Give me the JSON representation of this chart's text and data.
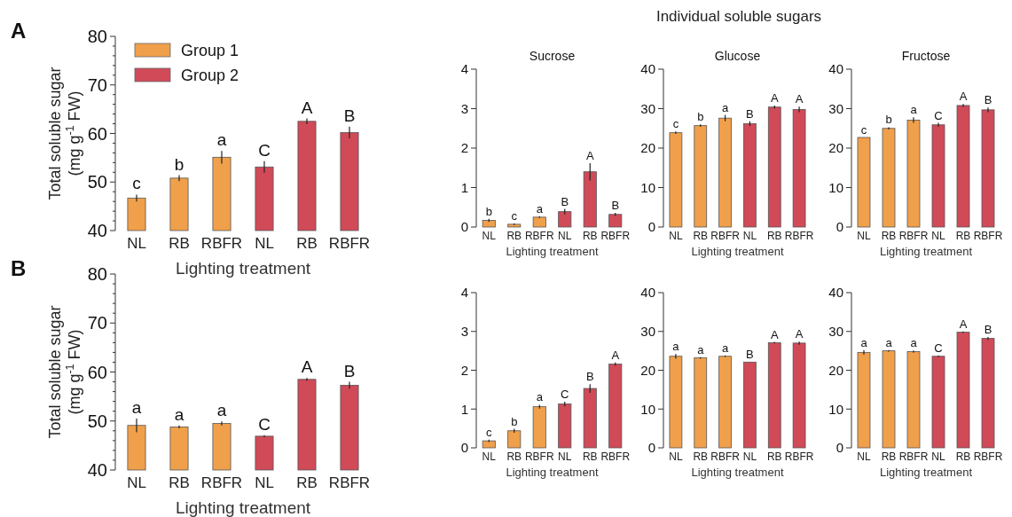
{
  "chart_data": [
    {
      "type": "bar",
      "ylabel": "Total soluble sugar\n(mg g$^{-1}$ FW)",
      "xlabel": "Lighting treatment",
      "categories": [
        "NL",
        "RB",
        "RBFR",
        "NL",
        "RB",
        "RBFR"
      ],
      "ylim": [
        40,
        80
      ],
      "yticks": [
        40,
        {
          "value": 42,
          "label": null
        },
        {
          "value": 44,
          "label": null
        },
        {
          "value": 46,
          "label": null
        },
        {
          "value": 48,
          "label": null
        },
        50,
        {
          "value": 52,
          "label": null
        },
        {
          "value": 54,
          "label": null
        },
        {
          "value": 56,
          "label": null
        },
        {
          "value": 58,
          "label": null
        },
        60,
        {
          "value": 62,
          "label": null
        },
        {
          "value": 64,
          "label": null
        },
        {
          "value": 66,
          "label": null
        },
        {
          "value": 68,
          "label": null
        },
        70,
        {
          "value": 72,
          "label": null
        },
        {
          "value": 74,
          "label": null
        },
        {
          "value": 76,
          "label": null
        },
        {
          "value": 78,
          "label": null
        },
        80
      ],
      "legend": "top left",
      "annotations": [
        "A"
      ],
      "series": [
        {
          "name": "Group 1",
          "color": "#f0a04b",
          "values": [
            46.7,
            50.8,
            55.1,
            null,
            null,
            null
          ],
          "errors": [
            0.7,
            0.6,
            1.3,
            null,
            null,
            null
          ],
          "value_labels": [
            "c",
            "b",
            "a",
            null,
            null,
            null
          ]
        },
        {
          "name": "Group 2",
          "color": "#d04a58",
          "values": [
            null,
            null,
            null,
            53.1,
            62.5,
            60.2
          ],
          "errors": [
            null,
            null,
            null,
            1.2,
            0.6,
            1.2
          ],
          "value_labels": [
            null,
            null,
            null,
            "C",
            "A",
            "B"
          ]
        }
      ]
    },
    {
      "type": "other",
      "title": "Individual soluble sugars"
    },
    {
      "type": "bar",
      "title": "Sucrose",
      "xlabel": "Lighting treatment",
      "categories": [
        "NL",
        "RB",
        "RBFR",
        "NL",
        "RB",
        "RBFR"
      ],
      "ylim": [
        0,
        4
      ],
      "yticks": [
        0,
        1,
        2,
        3,
        4
      ],
      "series": [
        {
          "color": "#f0a04b",
          "values": [
            0.17,
            0.07,
            0.25,
            null,
            null,
            null
          ],
          "errors": [
            0.04,
            0.02,
            0.02,
            null,
            null,
            null
          ],
          "value_labels": [
            "b",
            "c",
            "a",
            null,
            null,
            null
          ]
        },
        {
          "color": "#d04a58",
          "values": [
            null,
            null,
            null,
            0.39,
            1.4,
            0.32
          ],
          "errors": [
            null,
            null,
            null,
            0.07,
            0.22,
            0.04
          ],
          "value_labels": [
            null,
            null,
            null,
            "B",
            "A",
            "B"
          ]
        }
      ]
    },
    {
      "type": "bar",
      "title": "Glucose",
      "xlabel": "Lighting treatment",
      "categories": [
        "NL",
        "RB",
        "RBFR",
        "NL",
        "RB",
        "RBFR"
      ],
      "ylim": [
        0,
        40
      ],
      "yticks": [
        0,
        10,
        20,
        30,
        40
      ],
      "series": [
        {
          "color": "#f0a04b",
          "values": [
            23.9,
            25.7,
            27.6,
            null,
            null,
            null
          ],
          "errors": [
            0.3,
            0.3,
            0.8,
            null,
            null,
            null
          ],
          "value_labels": [
            "c",
            "b",
            "a",
            null,
            null,
            null
          ]
        },
        {
          "color": "#d04a58",
          "values": [
            null,
            null,
            null,
            26.2,
            30.4,
            29.8
          ],
          "errors": [
            null,
            null,
            null,
            0.6,
            0.4,
            0.7
          ],
          "value_labels": [
            null,
            null,
            null,
            "B",
            "A",
            "A"
          ]
        }
      ]
    },
    {
      "type": "bar",
      "title": "Fructose",
      "xlabel": "Lighting treatment",
      "categories": [
        "NL",
        "RB",
        "RBFR",
        "NL",
        "RB",
        "RBFR"
      ],
      "ylim": [
        0,
        40
      ],
      "yticks": [
        0,
        10,
        20,
        30,
        40
      ],
      "series": [
        {
          "color": "#f0a04b",
          "values": [
            22.7,
            25.0,
            27.1,
            null,
            null,
            null
          ],
          "errors": [
            null,
            0.3,
            0.7,
            null,
            null,
            null
          ],
          "value_labels": [
            "c",
            "b",
            "a",
            null,
            null,
            null
          ]
        },
        {
          "color": "#d04a58",
          "values": [
            null,
            null,
            null,
            25.9,
            30.8,
            29.7
          ],
          "errors": [
            null,
            null,
            null,
            0.5,
            0.4,
            0.6
          ],
          "value_labels": [
            null,
            null,
            null,
            "C",
            "A",
            "B"
          ]
        }
      ]
    },
    {
      "type": "bar",
      "ylabel": "Total soluble sugar\n(mg g$^{-1}$ FW)",
      "xlabel": "Lighting treatment",
      "categories": [
        "NL",
        "RB",
        "RBFR",
        "NL",
        "RB",
        "RBFR"
      ],
      "ylim": [
        40,
        80
      ],
      "yticks": [
        40,
        {
          "value": 42,
          "label": null
        },
        {
          "value": 44,
          "label": null
        },
        {
          "value": 46,
          "label": null
        },
        {
          "value": 48,
          "label": null
        },
        50,
        {
          "value": 52,
          "label": null
        },
        {
          "value": 54,
          "label": null
        },
        {
          "value": 56,
          "label": null
        },
        {
          "value": 58,
          "label": null
        },
        60,
        {
          "value": 62,
          "label": null
        },
        {
          "value": 64,
          "label": null
        },
        {
          "value": 66,
          "label": null
        },
        {
          "value": 68,
          "label": null
        },
        70,
        {
          "value": 72,
          "label": null
        },
        {
          "value": 74,
          "label": null
        },
        {
          "value": 76,
          "label": null
        },
        {
          "value": 78,
          "label": null
        },
        80
      ],
      "annotations": [
        "B"
      ],
      "series": [
        {
          "color": "#f0a04b",
          "values": [
            49.1,
            48.8,
            49.5,
            null,
            null,
            null
          ],
          "errors": [
            1.4,
            0.3,
            0.4,
            null,
            null,
            null
          ],
          "value_labels": [
            "a",
            "a",
            "a",
            null,
            null,
            null
          ]
        },
        {
          "color": "#d04a58",
          "values": [
            null,
            null,
            null,
            46.9,
            58.5,
            57.3
          ],
          "errors": [
            null,
            null,
            null,
            0.2,
            0.3,
            0.7
          ],
          "value_labels": [
            null,
            null,
            null,
            "C",
            "A",
            "B"
          ]
        }
      ]
    },
    {
      "type": "bar",
      "xlabel": "Lighting treatment",
      "categories": [
        "NL",
        "RB",
        "RBFR",
        "NL",
        "RB",
        "RBFR"
      ],
      "ylim": [
        0,
        4
      ],
      "yticks": [
        0,
        1,
        2,
        3,
        4
      ],
      "series": [
        {
          "color": "#f0a04b",
          "values": [
            0.18,
            0.44,
            1.06,
            null,
            null,
            null
          ],
          "errors": [
            0.03,
            0.05,
            0.05,
            null,
            null,
            null
          ],
          "value_labels": [
            "c",
            "b",
            "a",
            null,
            null,
            null
          ]
        },
        {
          "color": "#d04a58",
          "values": [
            null,
            null,
            null,
            1.13,
            1.53,
            2.16
          ],
          "errors": [
            null,
            null,
            null,
            0.06,
            0.11,
            0.04
          ],
          "value_labels": [
            null,
            null,
            null,
            "C",
            "B",
            "A"
          ]
        }
      ]
    },
    {
      "type": "bar",
      "xlabel": "Lighting treatment",
      "categories": [
        "NL",
        "RB",
        "RBFR",
        "NL",
        "RB",
        "RBFR"
      ],
      "ylim": [
        0,
        40
      ],
      "yticks": [
        0,
        10,
        20,
        30,
        40
      ],
      "series": [
        {
          "color": "#f0a04b",
          "values": [
            23.6,
            23.2,
            23.6,
            null,
            null,
            null
          ],
          "errors": [
            0.6,
            0.2,
            0.2,
            null,
            null,
            null
          ],
          "value_labels": [
            "a",
            "a",
            "a",
            null,
            null,
            null
          ]
        },
        {
          "color": "#d04a58",
          "values": [
            null,
            null,
            null,
            22.1,
            27.1,
            27.0
          ],
          "errors": [
            null,
            null,
            null,
            null,
            0.2,
            0.4
          ],
          "value_labels": [
            null,
            null,
            null,
            "B",
            "A",
            "A"
          ]
        }
      ]
    },
    {
      "type": "bar",
      "xlabel": "Lighting treatment",
      "categories": [
        "NL",
        "RB",
        "RBFR",
        "NL",
        "RB",
        "RBFR"
      ],
      "ylim": [
        0,
        40
      ],
      "yticks": [
        0,
        10,
        20,
        30,
        40
      ],
      "series": [
        {
          "color": "#f0a04b",
          "values": [
            24.6,
            25.0,
            24.8,
            null,
            null,
            null
          ],
          "errors": [
            0.6,
            0.2,
            0.3,
            null,
            null,
            null
          ],
          "value_labels": [
            "a",
            "a",
            "a",
            null,
            null,
            null
          ]
        },
        {
          "color": "#d04a58",
          "values": [
            null,
            null,
            null,
            23.6,
            29.8,
            28.2
          ],
          "errors": [
            null,
            null,
            null,
            0.2,
            0.2,
            0.4
          ],
          "value_labels": [
            null,
            null,
            null,
            "C",
            "A",
            "B"
          ]
        }
      ]
    }
  ]
}
